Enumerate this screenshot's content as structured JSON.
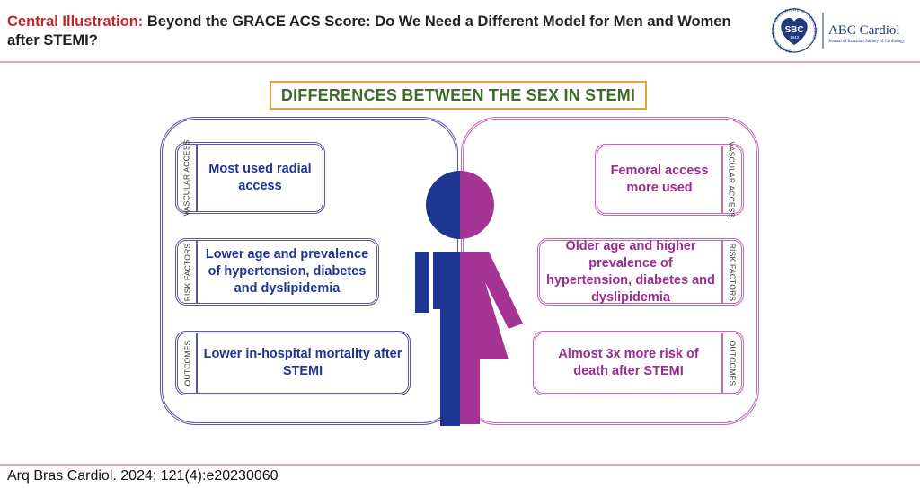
{
  "header": {
    "title_label": "Central Illustration:",
    "title_text": "Beyond the GRACE ACS Score: Do We Need a Different Model for Men and Women after STEMI?",
    "logo": {
      "seal_text": "SBC",
      "seal_year": "1943",
      "seal_ring_text": "SOCIEDADE BRASILEIRA DE CARDIOLOGIA",
      "journal_name": "ABC Cardiol",
      "journal_subtitle": "Journal of Brazilian Society of Cardiology"
    }
  },
  "diagram": {
    "heading": "DIFFERENCES BETWEEN THE SEX IN STEMI",
    "male": {
      "color": "#1f3592",
      "items": [
        {
          "tag": "VASCULAR ACCESS",
          "text": "Most used radial access"
        },
        {
          "tag": "RISK FACTORS",
          "text": "Lower age and prevalence of hypertension, diabetes and dyslipidemia"
        },
        {
          "tag": "OUTCOMES",
          "text": "Lower in-hospital mortality after STEMI"
        }
      ]
    },
    "female": {
      "color": "#9a2d8f",
      "items": [
        {
          "tag": "VASCULAR ACCESS",
          "text": "Femoral access more used"
        },
        {
          "tag": "RISK FACTORS",
          "text": "Older age and higher prevalence of hypertension, diabetes and dyslipidemia"
        },
        {
          "tag": "OUTCOMES",
          "text": "Almost 3x more risk of death after STEMI"
        }
      ]
    }
  },
  "footer": {
    "citation": "Arq Bras Cardiol. 2024; 121(4):e20230060"
  }
}
